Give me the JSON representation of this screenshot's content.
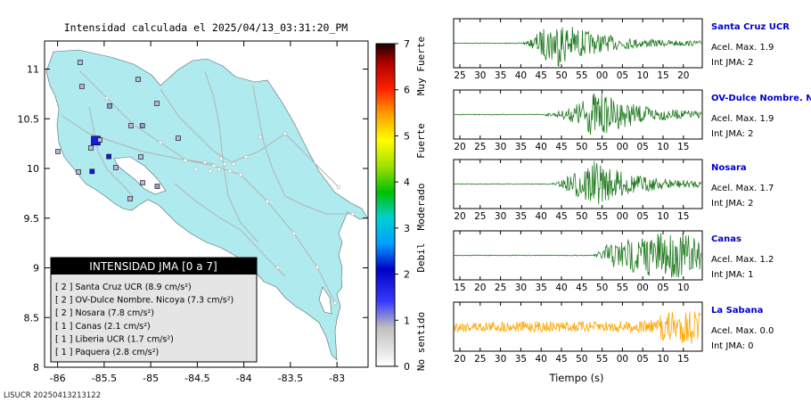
{
  "map": {
    "title": "Intensidad calculada el 2025/04/13_03:31:20_PM",
    "footer_id": "LISUCR 20250413213122",
    "colors": {
      "land": "#aeeaee",
      "roads": "#b4b4b4",
      "frame": "#000000"
    },
    "lon_ticks": [
      "-86",
      "-85.5",
      "-85",
      "-84.5",
      "-84",
      "-83.5",
      "-83"
    ],
    "lat_ticks": [
      "11",
      "10.5",
      "10",
      "9.5",
      "9",
      "8.5",
      "8"
    ],
    "legend": {
      "title": "INTENSIDAD JMA [0 a 7]",
      "items": [
        "[ 2 ] Santa Cruz UCR (8.9 cm/s²)",
        "[ 2 ] OV-Dulce Nombre. Nicoya (7.3 cm/s²)",
        "[ 2 ] Nosara (7.8 cm/s²)",
        "[ 1 ] Canas (2.1 cm/s²)",
        "[ 1 ] Liberia UCR (1.7 cm/s²)",
        "[ 1 ] Paquera (2.8 cm/s²)"
      ]
    }
  },
  "colorbar": {
    "ticks": [
      "0",
      "1",
      "2",
      "3",
      "4",
      "5",
      "6",
      "7"
    ],
    "labels": [
      "No sentido",
      "Debil",
      "Moderado",
      "Fuerte",
      "Muy Fuerte"
    ]
  },
  "chart_data": {
    "type": "line",
    "xlabel": "Tiempo (s)",
    "traces": [
      {
        "station": "Santa Cruz UCR",
        "accel": "Acel. Max. 1.9",
        "jma": "Int JMA: 2",
        "color": "#1f7a1f",
        "ticks": [
          "25",
          "30",
          "35",
          "40",
          "45",
          "50",
          "55",
          "00",
          "05",
          "10",
          "15",
          "20"
        ],
        "onset_tick": 3.1,
        "peak_tick": 4.9
      },
      {
        "station": "OV-Dulce Nombre. Nicoya",
        "accel": "Acel. Max. 1.9",
        "jma": "Int JMA: 2",
        "color": "#1f7a1f",
        "ticks": [
          "20",
          "25",
          "30",
          "35",
          "40",
          "45",
          "50",
          "55",
          "00",
          "05",
          "10",
          "15"
        ],
        "onset_tick": 4.2,
        "peak_tick": 6.8
      },
      {
        "station": "Nosara",
        "accel": "Acel. Max. 1.7",
        "jma": "Int JMA: 2",
        "color": "#1f7a1f",
        "ticks": [
          "20",
          "25",
          "30",
          "35",
          "40",
          "45",
          "50",
          "55",
          "00",
          "05",
          "10",
          "15"
        ],
        "onset_tick": 4.5,
        "peak_tick": 6.6
      },
      {
        "station": "Canas",
        "accel": "Acel. Max. 1.2",
        "jma": "Int JMA: 1",
        "color": "#1f7a1f",
        "ticks": [
          "15",
          "20",
          "25",
          "30",
          "35",
          "40",
          "45",
          "50",
          "55",
          "00",
          "05",
          "10"
        ],
        "onset_tick": 6.6,
        "peak_tick": 10.5
      },
      {
        "station": "La Sabana",
        "accel": "Acel. Max. 0.0",
        "jma": "Int JMA: 0",
        "color": "#ffa500",
        "ticks": [
          "20",
          "25",
          "30",
          "35",
          "40",
          "45",
          "50",
          "55",
          "00",
          "05",
          "10",
          "15"
        ],
        "onset_tick": 0,
        "peak_tick": 10.8
      }
    ],
    "stations": [
      {
        "name": "Santa Cruz UCR",
        "lon": -85.59,
        "lat": 10.28,
        "jma": 2
      },
      {
        "name": "OV-Dulce Nombre. Nicoya",
        "lon": -85.45,
        "lat": 10.12,
        "jma": 2
      },
      {
        "name": "Nosara",
        "lon": -85.63,
        "lat": 9.97,
        "jma": 2
      },
      {
        "name": "Canas",
        "lon": -85.09,
        "lat": 10.43,
        "jma": 1
      },
      {
        "name": "Liberia UCR",
        "lon": -85.44,
        "lat": 10.63,
        "jma": 1
      },
      {
        "name": "Paquera",
        "lon": -84.93,
        "lat": 9.82,
        "jma": 1
      }
    ]
  }
}
